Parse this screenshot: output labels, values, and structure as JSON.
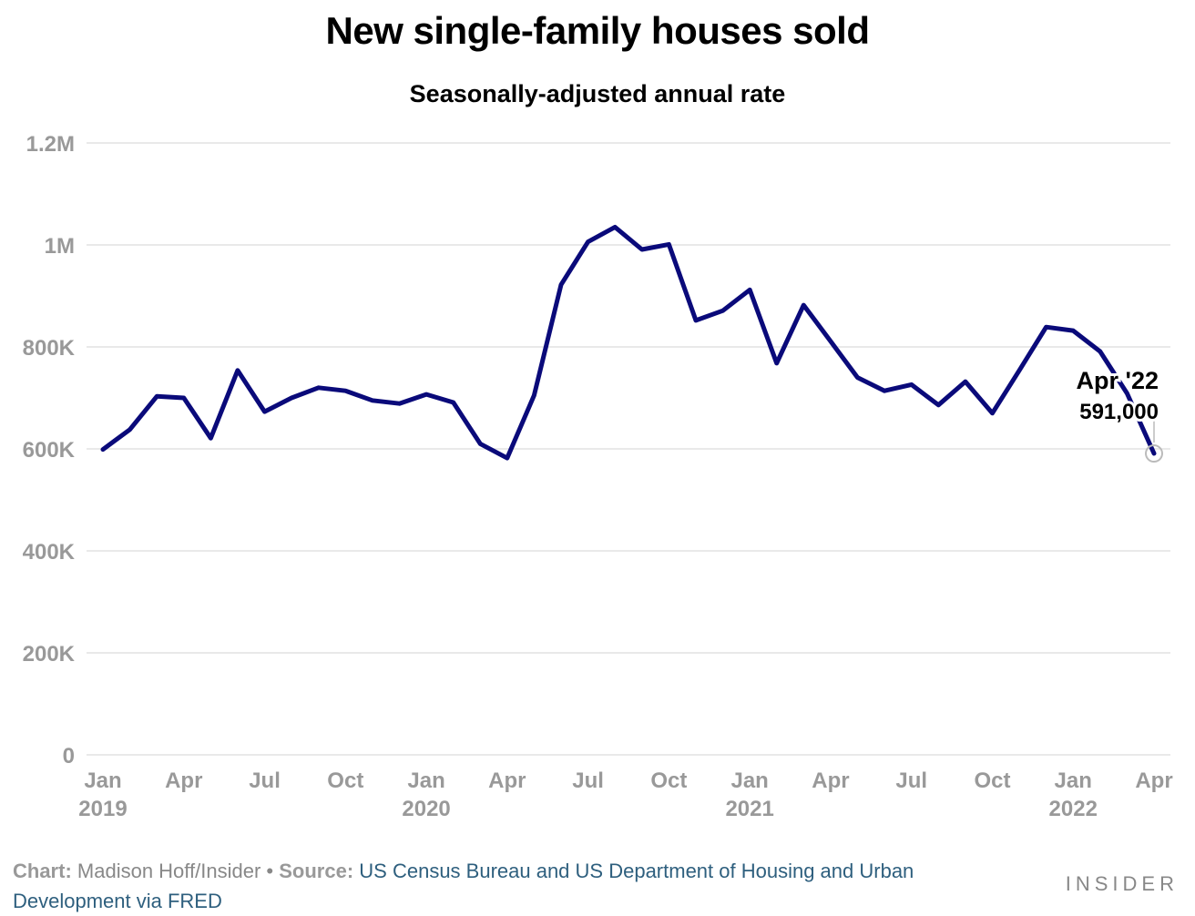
{
  "title": "New single-family houses sold",
  "subtitle": "Seasonally-adjusted annual rate",
  "footer": {
    "chart_label": "Chart:",
    "chart_author": "Madison Hoff/Insider",
    "separator": "•",
    "source_label": "Source:",
    "source_text": "US Census Bureau and US Department of Housing and Urban Development via FRED"
  },
  "logo": "INSIDER",
  "colors": {
    "line": "#0a0a7a",
    "grid": "#e2e2e2",
    "tick": "#999999",
    "source_link": "#2e5f7e"
  },
  "chart_data": {
    "type": "line",
    "title": "New single-family houses sold",
    "subtitle": "Seasonally-adjusted annual rate",
    "xlabel": "",
    "ylabel": "",
    "ylim": [
      0,
      1200000
    ],
    "grid": true,
    "yticks": [
      {
        "value": 0,
        "label": "0"
      },
      {
        "value": 200000,
        "label": "200K"
      },
      {
        "value": 400000,
        "label": "400K"
      },
      {
        "value": 600000,
        "label": "600K"
      },
      {
        "value": 800000,
        "label": "800K"
      },
      {
        "value": 1000000,
        "label": "1M"
      },
      {
        "value": 1200000,
        "label": "1.2M"
      }
    ],
    "xticks": [
      {
        "date": "2019-01",
        "label": "Jan",
        "year": "2019"
      },
      {
        "date": "2019-04",
        "label": "Apr",
        "year": ""
      },
      {
        "date": "2019-07",
        "label": "Jul",
        "year": ""
      },
      {
        "date": "2019-10",
        "label": "Oct",
        "year": ""
      },
      {
        "date": "2020-01",
        "label": "Jan",
        "year": "2020"
      },
      {
        "date": "2020-04",
        "label": "Apr",
        "year": ""
      },
      {
        "date": "2020-07",
        "label": "Jul",
        "year": ""
      },
      {
        "date": "2020-10",
        "label": "Oct",
        "year": ""
      },
      {
        "date": "2021-01",
        "label": "Jan",
        "year": "2021"
      },
      {
        "date": "2021-04",
        "label": "Apr",
        "year": ""
      },
      {
        "date": "2021-07",
        "label": "Jul",
        "year": ""
      },
      {
        "date": "2021-10",
        "label": "Oct",
        "year": ""
      },
      {
        "date": "2022-01",
        "label": "Jan",
        "year": "2022"
      },
      {
        "date": "2022-04",
        "label": "Apr",
        "year": ""
      }
    ],
    "series": [
      {
        "x": [
          "2019-01",
          "2019-02",
          "2019-03",
          "2019-04",
          "2019-05",
          "2019-06",
          "2019-07",
          "2019-08",
          "2019-09",
          "2019-10",
          "2019-11",
          "2019-12",
          "2020-01",
          "2020-02",
          "2020-03",
          "2020-04",
          "2020-05",
          "2020-06",
          "2020-07",
          "2020-08",
          "2020-09",
          "2020-10",
          "2020-11",
          "2020-12",
          "2021-01",
          "2021-02",
          "2021-03",
          "2021-04",
          "2021-05",
          "2021-06",
          "2021-07",
          "2021-08",
          "2021-09",
          "2021-10",
          "2021-11",
          "2021-12",
          "2022-01",
          "2022-02",
          "2022-03",
          "2022-04"
        ],
        "values": [
          599000,
          638000,
          703000,
          700000,
          621000,
          754000,
          673000,
          700000,
          720000,
          714000,
          695000,
          689000,
          707000,
          691000,
          610000,
          582000,
          705000,
          922000,
          1006000,
          1035000,
          991000,
          1001000,
          852000,
          871000,
          912000,
          768000,
          882000,
          811000,
          740000,
          714000,
          726000,
          686000,
          732000,
          670000,
          754000,
          839000,
          832000,
          791000,
          709000,
          591000
        ]
      }
    ],
    "annotation": {
      "date": "2022-04",
      "value": 591000,
      "label": "Apr '22",
      "value_label": "591,000"
    }
  }
}
